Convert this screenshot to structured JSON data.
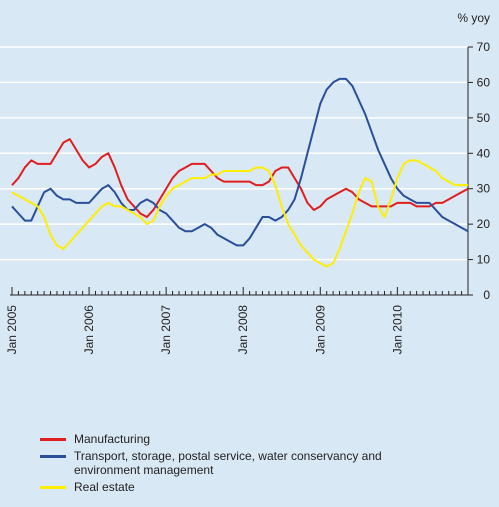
{
  "chart_data": {
    "type": "line",
    "y_label": "% yoy",
    "categories": [
      "Jan 2005",
      null,
      null,
      null,
      null,
      null,
      null,
      null,
      null,
      null,
      null,
      null,
      "Jan 2006",
      null,
      null,
      null,
      null,
      null,
      null,
      null,
      null,
      null,
      null,
      null,
      "Jan 2007",
      null,
      null,
      null,
      null,
      null,
      null,
      null,
      null,
      null,
      null,
      null,
      "Jan 2008",
      null,
      null,
      null,
      null,
      null,
      null,
      null,
      null,
      null,
      null,
      null,
      "Jan 2009",
      null,
      null,
      null,
      null,
      null,
      null,
      null,
      null,
      null,
      null,
      null,
      "Jan 2010",
      null,
      null,
      null,
      null,
      null,
      null,
      null,
      null,
      null,
      null,
      null
    ],
    "series": [
      {
        "name": "Manufacturing",
        "color": "#e01e1e",
        "values": [
          31,
          33,
          36,
          38,
          37,
          37,
          37,
          40,
          43,
          44,
          41,
          38,
          36,
          37,
          39,
          40,
          36,
          31,
          27,
          25,
          23,
          22,
          24,
          27,
          30,
          33,
          35,
          36,
          37,
          37,
          37,
          35,
          33,
          32,
          32,
          32,
          32,
          32,
          31,
          31,
          32,
          35,
          36,
          36,
          33,
          30,
          26,
          24,
          25,
          27,
          28,
          29,
          30,
          29,
          27,
          26,
          25,
          25,
          25,
          25,
          26,
          26,
          26,
          25,
          25,
          25,
          26,
          26,
          27,
          28,
          29,
          30
        ]
      },
      {
        "name": "Transport, storage, postal service, water conservancy and environment management",
        "color": "#2a4f9a",
        "values": [
          25,
          23,
          21,
          21,
          25,
          29,
          30,
          28,
          27,
          27,
          26,
          26,
          26,
          28,
          30,
          31,
          29,
          26,
          24,
          24,
          26,
          27,
          26,
          24,
          23,
          21,
          19,
          18,
          18,
          19,
          20,
          19,
          17,
          16,
          15,
          14,
          14,
          16,
          19,
          22,
          22,
          21,
          22,
          24,
          27,
          33,
          40,
          47,
          54,
          58,
          60,
          61,
          61,
          59,
          55,
          51,
          46,
          41,
          37,
          33,
          30,
          28,
          27,
          26,
          26,
          26,
          24,
          22,
          21,
          20,
          19,
          18
        ]
      },
      {
        "name": "Real estate",
        "color": "#ffee00",
        "values": [
          29,
          28,
          27,
          26,
          25,
          22,
          17,
          14,
          13,
          15,
          17,
          19,
          21,
          23,
          25,
          26,
          25,
          25,
          24,
          23,
          22,
          20,
          21,
          25,
          28,
          30,
          31,
          32,
          33,
          33,
          33,
          34,
          34,
          35,
          35,
          35,
          35,
          35,
          36,
          36,
          35,
          31,
          25,
          20,
          17,
          14,
          12,
          10,
          9,
          8,
          9,
          13,
          18,
          23,
          29,
          33,
          32,
          25,
          22,
          27,
          33,
          37,
          38,
          38,
          37,
          36,
          35,
          33,
          32,
          31,
          31,
          31
        ]
      }
    ],
    "ylim": [
      0,
      70
    ],
    "yticks": [
      0,
      10,
      20,
      30,
      40,
      50,
      60,
      70
    ],
    "grid": true
  }
}
